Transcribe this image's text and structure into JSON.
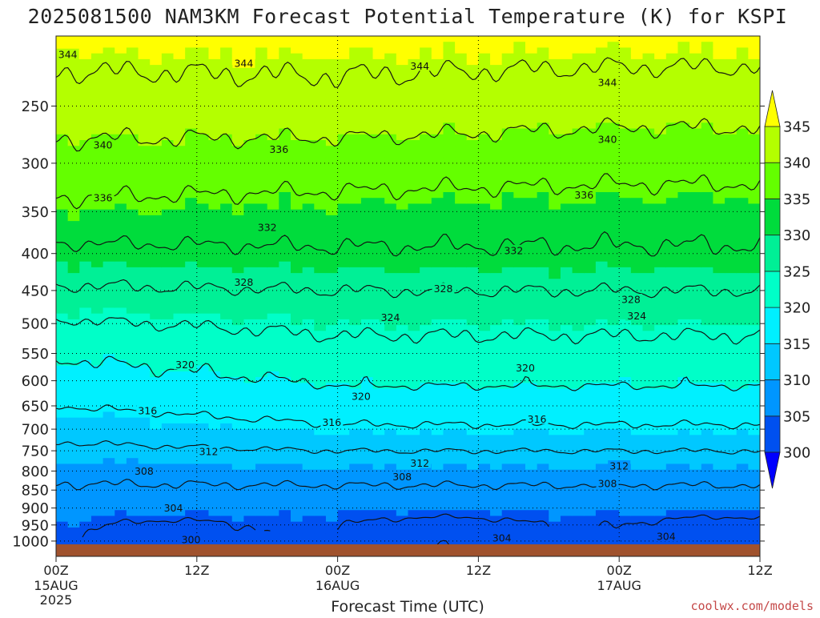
{
  "chart_data": {
    "type": "heatmap",
    "title": "2025081500 NAM3KM Forecast Potential Temperature (K) for KSPI",
    "xlabel": "Forecast Time (UTC)",
    "ylabel": "",
    "credit": "coolwx.com/models",
    "units": "K",
    "x_ticks": [
      {
        "label": "00Z",
        "date": "15AUG",
        "year": "2025"
      },
      {
        "label": "12Z",
        "date": "",
        "year": ""
      },
      {
        "label": "00Z",
        "date": "16AUG",
        "year": ""
      },
      {
        "label": "12Z",
        "date": "",
        "year": ""
      },
      {
        "label": "00Z",
        "date": "17AUG",
        "year": ""
      },
      {
        "label": "12Z",
        "date": "",
        "year": ""
      }
    ],
    "x_hours": [
      0,
      12,
      24,
      36,
      48,
      60
    ],
    "xlim_hours": [
      0,
      60
    ],
    "y_axis": "pressure (hPa), log scale, inverted",
    "ylim_hpa": [
      1050,
      200
    ],
    "y_ticks": [
      "250",
      "300",
      "350",
      "400",
      "450",
      "500",
      "550",
      "600",
      "650",
      "700",
      "750",
      "800",
      "850",
      "900",
      "950",
      "1000"
    ],
    "colorbar": {
      "levels": [
        300,
        305,
        310,
        315,
        320,
        325,
        330,
        335,
        340,
        345
      ],
      "labels": [
        "300",
        "305",
        "310",
        "315",
        "320",
        "325",
        "330",
        "335",
        "340",
        "345"
      ],
      "colors": [
        "#0000ff",
        "#0050f0",
        "#0096ff",
        "#00c8ff",
        "#00f0ff",
        "#00ffc8",
        "#00f096",
        "#00dc3c",
        "#64ff00",
        "#b4ff00",
        "#ffff00"
      ],
      "extend": "both"
    },
    "surface_color": "#a0522d",
    "grid": true,
    "profile_model": {
      "hpa": [
        1000,
        950,
        900,
        850,
        800,
        750,
        700,
        650,
        600,
        550,
        500,
        450,
        400,
        350,
        300,
        250,
        200
      ],
      "hour00": [
        303.5,
        304.5,
        306.0,
        307.5,
        309.0,
        311.0,
        313.5,
        316.0,
        318.0,
        320.5,
        323.5,
        327.5,
        331.0,
        335.0,
        338.5,
        342.0,
        346.0
      ],
      "hour24": [
        302.0,
        303.5,
        305.5,
        307.5,
        309.5,
        312.0,
        315.5,
        318.0,
        320.5,
        322.5,
        325.0,
        328.0,
        331.5,
        334.5,
        338.0,
        342.5,
        346.0
      ],
      "hour48": [
        302.0,
        303.5,
        305.5,
        307.5,
        309.5,
        312.0,
        315.5,
        318.0,
        320.5,
        322.5,
        325.0,
        328.0,
        331.5,
        334.0,
        337.5,
        341.5,
        346.0
      ]
    },
    "contours": [
      {
        "level": 300,
        "labels": [
          {
            "hour": 11.5,
            "hpa": 995
          }
        ]
      },
      {
        "level": 304,
        "labels": [
          {
            "hour": 10,
            "hpa": 900
          },
          {
            "hour": 38,
            "hpa": 990
          },
          {
            "hour": 52,
            "hpa": 985
          }
        ]
      },
      {
        "level": 308,
        "labels": [
          {
            "hour": 7.5,
            "hpa": 800
          },
          {
            "hour": 29.5,
            "hpa": 815
          },
          {
            "hour": 47,
            "hpa": 832
          }
        ]
      },
      {
        "level": 312,
        "labels": [
          {
            "hour": 13,
            "hpa": 752
          },
          {
            "hour": 31,
            "hpa": 780
          },
          {
            "hour": 48,
            "hpa": 787
          }
        ]
      },
      {
        "level": 316,
        "labels": [
          {
            "hour": 7.8,
            "hpa": 660
          },
          {
            "hour": 23.5,
            "hpa": 685
          },
          {
            "hour": 41,
            "hpa": 678
          }
        ]
      },
      {
        "level": 320,
        "labels": [
          {
            "hour": 11,
            "hpa": 570
          },
          {
            "hour": 26,
            "hpa": 630
          },
          {
            "hour": 40,
            "hpa": 576
          }
        ]
      },
      {
        "level": 324,
        "labels": [
          {
            "hour": 28.5,
            "hpa": 490
          },
          {
            "hour": 49.5,
            "hpa": 488
          }
        ]
      },
      {
        "level": 328,
        "labels": [
          {
            "hour": 16,
            "hpa": 438
          },
          {
            "hour": 33,
            "hpa": 447
          },
          {
            "hour": 49,
            "hpa": 463
          }
        ]
      },
      {
        "level": 332,
        "labels": [
          {
            "hour": 18,
            "hpa": 368
          },
          {
            "hour": 39,
            "hpa": 396
          }
        ]
      },
      {
        "level": 336,
        "labels": [
          {
            "hour": 4,
            "hpa": 335
          },
          {
            "hour": 19,
            "hpa": 287
          },
          {
            "hour": 45,
            "hpa": 332
          }
        ]
      },
      {
        "level": 340,
        "labels": [
          {
            "hour": 4,
            "hpa": 283
          },
          {
            "hour": 47,
            "hpa": 278
          }
        ]
      },
      {
        "level": 344,
        "labels": [
          {
            "hour": 1,
            "hpa": 212
          },
          {
            "hour": 16,
            "hpa": 218
          },
          {
            "hour": 31,
            "hpa": 220
          },
          {
            "hour": 47,
            "hpa": 232
          }
        ]
      }
    ]
  }
}
